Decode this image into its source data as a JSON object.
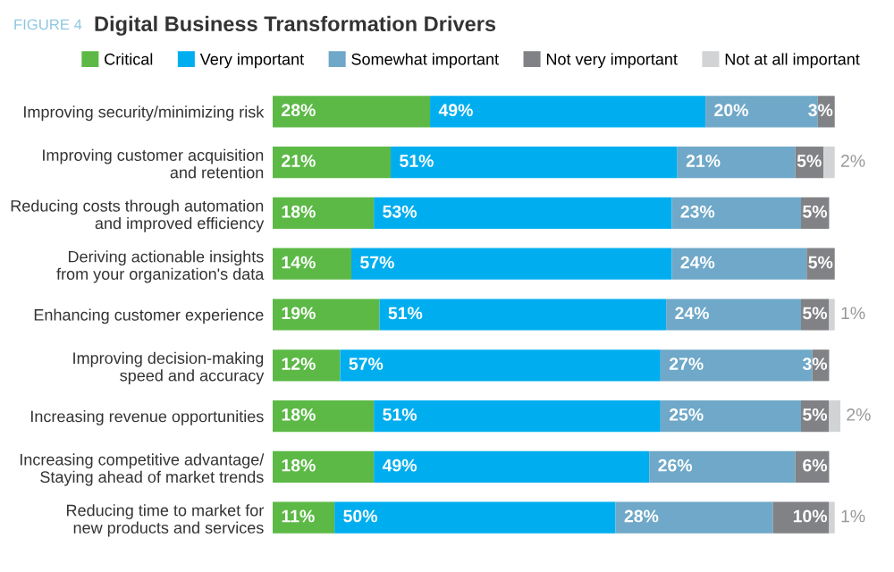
{
  "chart_data": {
    "type": "bar",
    "orientation": "horizontal",
    "stacked": true,
    "title": "Digital Business Transformation Drivers",
    "annotations": [
      "FIGURE 4"
    ],
    "categories": [
      "Improving security/minimizing risk",
      "Improving customer acquisition\nand retention",
      "Reducing costs through automation\nand improved efficiency",
      "Deriving actionable insights\nfrom your organization's data",
      "Enhancing customer experience",
      "Improving decision-making\nspeed and accuracy",
      "Increasing revenue opportunities",
      "Increasing competitive advantage/\nStaying ahead of market trends",
      "Reducing time to market for\nnew products and services"
    ],
    "series": [
      {
        "name": "Critical",
        "color": "#5cb946",
        "values": [
          28,
          21,
          18,
          14,
          19,
          12,
          18,
          18,
          11
        ],
        "value_labels": [
          "28%",
          "21%",
          "18%",
          "14%",
          "19%",
          "12%",
          "18%",
          "18%",
          "11%"
        ]
      },
      {
        "name": "Very important",
        "color": "#00aeef",
        "values": [
          49,
          51,
          53,
          57,
          51,
          57,
          51,
          49,
          50
        ],
        "value_labels": [
          "49%",
          "51%",
          "53%",
          "57%",
          "51%",
          "57%",
          "51%",
          "49%",
          "50%"
        ]
      },
      {
        "name": "Somewhat important",
        "color": "#6fa8c8",
        "values": [
          20,
          21,
          23,
          24,
          24,
          27,
          25,
          26,
          28
        ],
        "value_labels": [
          "20%",
          "21%",
          "23%",
          "24%",
          "24%",
          "27%",
          "25%",
          "26%",
          "28%"
        ]
      },
      {
        "name": "Not very important",
        "color": "#808285",
        "values": [
          3,
          5,
          5,
          5,
          5,
          3,
          5,
          6,
          10
        ],
        "value_labels": [
          "3%",
          "5%",
          "5%",
          "5%",
          "5%",
          "3%",
          "5%",
          "6%",
          "10%"
        ]
      },
      {
        "name": "Not at all important",
        "color": "#d1d3d4",
        "values": [
          null,
          2,
          null,
          null,
          1,
          null,
          2,
          null,
          1
        ],
        "value_labels": [
          null,
          "2%",
          null,
          null,
          "1%",
          null,
          "2%",
          null,
          "1%"
        ]
      }
    ],
    "legend": "top",
    "tick_labels": "y",
    "grid": false
  }
}
